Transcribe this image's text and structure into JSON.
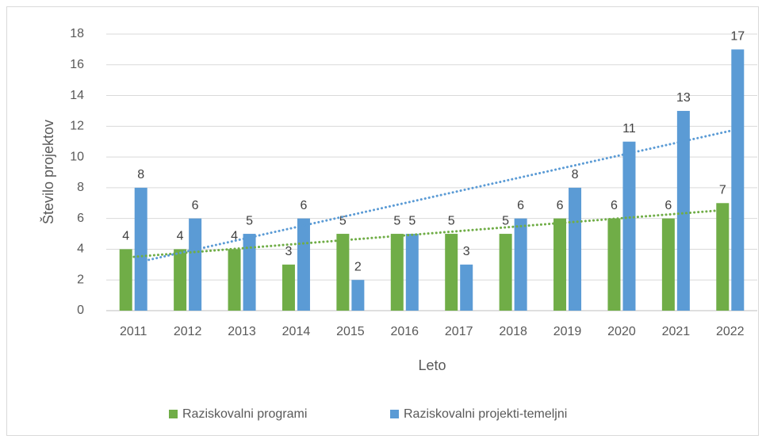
{
  "chart_data": {
    "type": "bar",
    "x_label": "Leto",
    "y_label": "Število projektov",
    "categories": [
      "2011",
      "2012",
      "2013",
      "2014",
      "2015",
      "2016",
      "2017",
      "2018",
      "2019",
      "2020",
      "2021",
      "2022"
    ],
    "series": [
      {
        "name": "Raziskovalni programi",
        "color": "#70ad47",
        "values": [
          4,
          4,
          4,
          3,
          5,
          5,
          5,
          5,
          6,
          6,
          6,
          7
        ]
      },
      {
        "name": "Raziskovalni projekti-temeljni",
        "color": "#5b9bd5",
        "values": [
          8,
          6,
          5,
          6,
          2,
          5,
          3,
          6,
          8,
          11,
          13,
          17
        ]
      }
    ],
    "ylim": [
      0,
      18
    ],
    "yticks": [
      0,
      2,
      4,
      6,
      8,
      10,
      12,
      14,
      16,
      18
    ],
    "grid": true,
    "trendline": true,
    "legend": "bottom"
  }
}
